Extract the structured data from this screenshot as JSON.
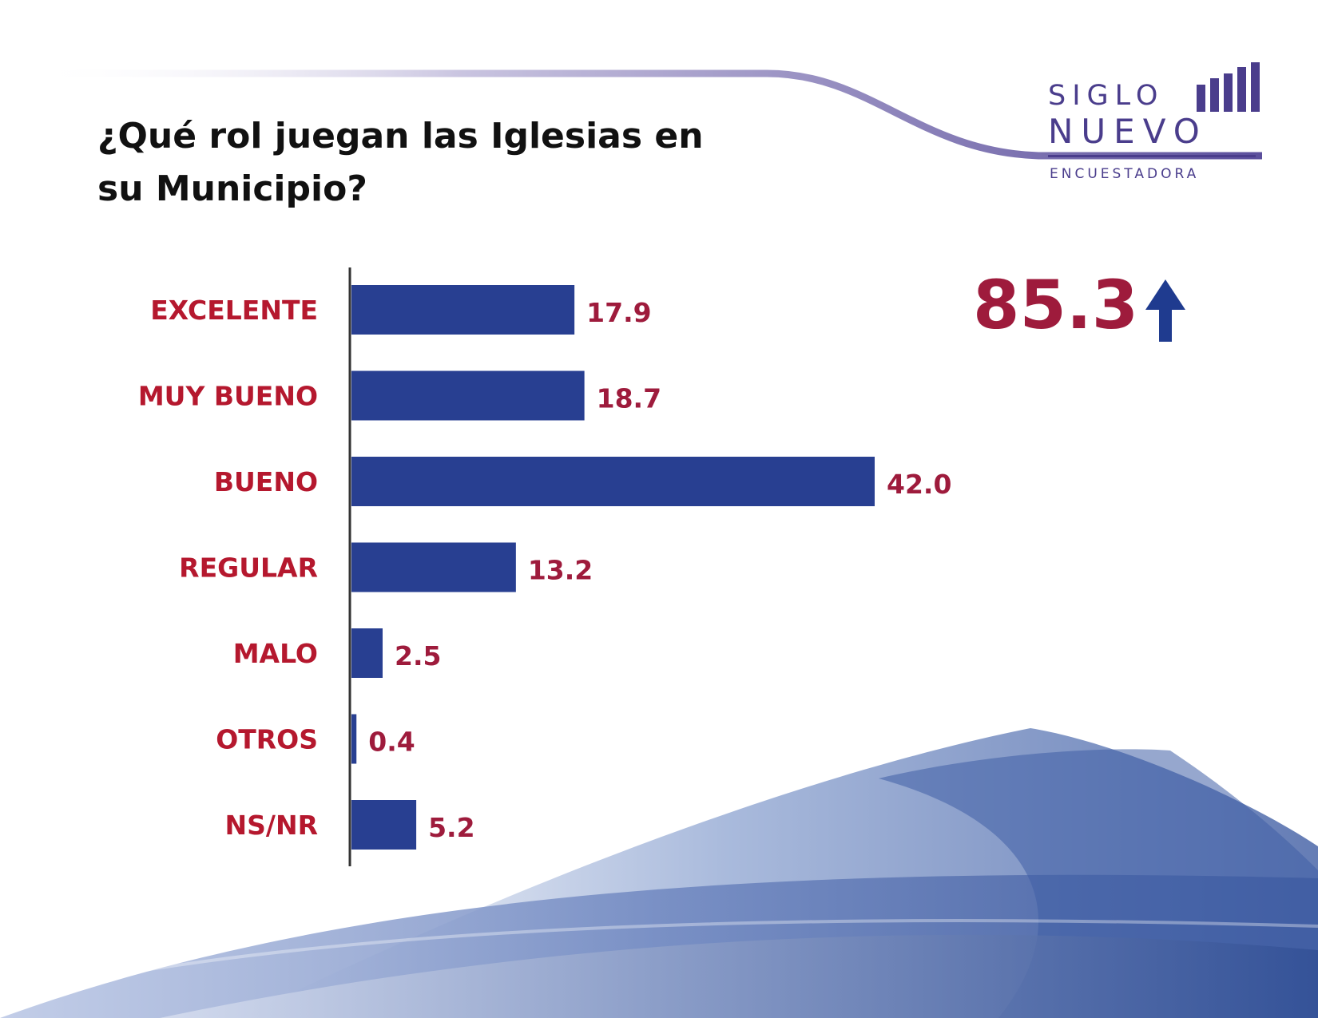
{
  "title": "¿Qué rol juegan las Iglesias en su Municipio?",
  "logo": {
    "line1": "SIGLO",
    "line2": "NUEVO",
    "subtitle": "ENCUESTADORA",
    "color": "#4a3d8c"
  },
  "summary": {
    "value": "85.3",
    "icon": "up-arrow-icon",
    "color": "#9e1b3c",
    "arrow_color": "#1f3b8f"
  },
  "chart_data": {
    "type": "bar",
    "orientation": "horizontal",
    "categories": [
      "EXCELENTE",
      "MUY BUENO",
      "BUENO",
      "REGULAR",
      "MALO",
      "OTROS",
      "NS/NR"
    ],
    "values": [
      17.9,
      18.7,
      42.0,
      13.2,
      2.5,
      0.4,
      5.2
    ],
    "value_labels": [
      "17.9",
      "18.7",
      "42.0",
      "13.2",
      "2.5",
      "0.4",
      "5.2"
    ],
    "xlim": [
      0,
      50
    ],
    "grid": false,
    "bar_color": "#283f91",
    "label_color": "#b5182e",
    "value_color": "#9e1b3c"
  }
}
